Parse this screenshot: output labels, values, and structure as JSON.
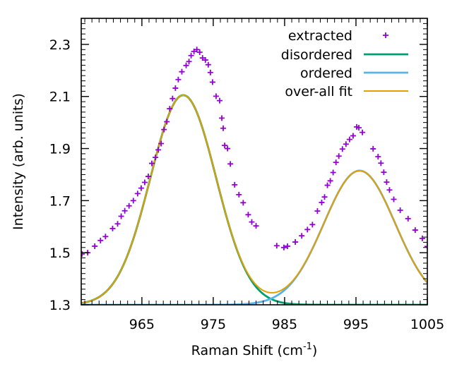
{
  "chart_data": {
    "type": "line",
    "xlabel_main": "Raman Shift (cm",
    "xlabel_sup": "-1",
    "xlabel_end": ")",
    "ylabel": "Intensity (arb. units)",
    "xlim": [
      956.5,
      1005
    ],
    "ylim": [
      1.3,
      2.4
    ],
    "x_ticks": [
      965,
      975,
      985,
      995,
      1005
    ],
    "y_ticks": [
      1.3,
      1.5,
      1.7,
      1.9,
      2.1,
      2.3
    ],
    "x_tick_labels": [
      "965",
      "975",
      "985",
      "995",
      "1005"
    ],
    "y_tick_labels": [
      "1.3",
      "1.5",
      "1.7",
      "1.9",
      "2.1",
      "2.3"
    ],
    "legend_position": "top-right",
    "series": [
      {
        "name": "extracted",
        "style": "points",
        "marker": "+",
        "color": "#9400d3",
        "x": [
          956.6,
          957.4,
          958.4,
          959.2,
          959.9,
          960.9,
          961.6,
          962.1,
          962.6,
          963.2,
          963.8,
          964.4,
          964.9,
          965.4,
          965.9,
          966.4,
          966.9,
          967.3,
          967.7,
          968.1,
          968.5,
          968.9,
          969.3,
          969.7,
          970.1,
          970.6,
          971.2,
          971.6,
          971.9,
          972.3,
          972.7,
          973.1,
          973.5,
          973.9,
          974.3,
          974.6,
          974.9,
          975.4,
          975.9,
          976.2,
          976.4,
          976.6,
          977.0,
          977.4,
          978.0,
          978.6,
          979.2,
          979.9,
          980.4,
          981.0,
          983.9,
          984.9,
          985.4,
          986.5,
          987.4,
          988.2,
          988.9,
          989.6,
          990.2,
          990.6,
          991.0,
          991.4,
          991.8,
          992.2,
          992.6,
          993.1,
          993.6,
          994.1,
          994.6,
          995.1,
          995.4,
          995.9,
          997.4,
          998.1,
          998.5,
          998.9,
          999.3,
          999.7,
          1000.3,
          1001.2,
          1002.3,
          1003.3,
          1004.3,
          1005.0
        ],
        "y": [
          1.495,
          1.5,
          1.525,
          1.547,
          1.562,
          1.593,
          1.611,
          1.64,
          1.661,
          1.68,
          1.7,
          1.727,
          1.748,
          1.77,
          1.793,
          1.843,
          1.866,
          1.895,
          1.919,
          1.973,
          2.003,
          2.053,
          2.092,
          2.132,
          2.165,
          2.195,
          2.219,
          2.234,
          2.257,
          2.273,
          2.28,
          2.27,
          2.248,
          2.24,
          2.222,
          2.192,
          2.155,
          2.101,
          2.084,
          2.017,
          1.978,
          1.912,
          1.9,
          1.841,
          1.761,
          1.723,
          1.692,
          1.646,
          1.618,
          1.603,
          1.527,
          1.52,
          1.525,
          1.541,
          1.565,
          1.589,
          1.608,
          1.66,
          1.693,
          1.714,
          1.759,
          1.776,
          1.808,
          1.847,
          1.871,
          1.898,
          1.917,
          1.935,
          1.949,
          1.983,
          1.98,
          1.962,
          1.899,
          1.869,
          1.844,
          1.809,
          1.771,
          1.741,
          1.705,
          1.663,
          1.631,
          1.587,
          1.555,
          1.524
        ]
      },
      {
        "name": "disordered",
        "style": "line",
        "color": "#009e73",
        "peak": {
          "amplitude": 0.805,
          "center": 970.8,
          "sigma": 4.6,
          "baseline": 1.3
        }
      },
      {
        "name": "ordered",
        "style": "line",
        "color": "#56b4e9",
        "peak": {
          "amplitude": 0.515,
          "center": 995.5,
          "sigma": 5.0,
          "baseline": 1.3
        }
      },
      {
        "name": "over-all fit",
        "style": "line",
        "color": "#e69f00",
        "composite_of": [
          "disordered",
          "ordered"
        ]
      }
    ]
  }
}
